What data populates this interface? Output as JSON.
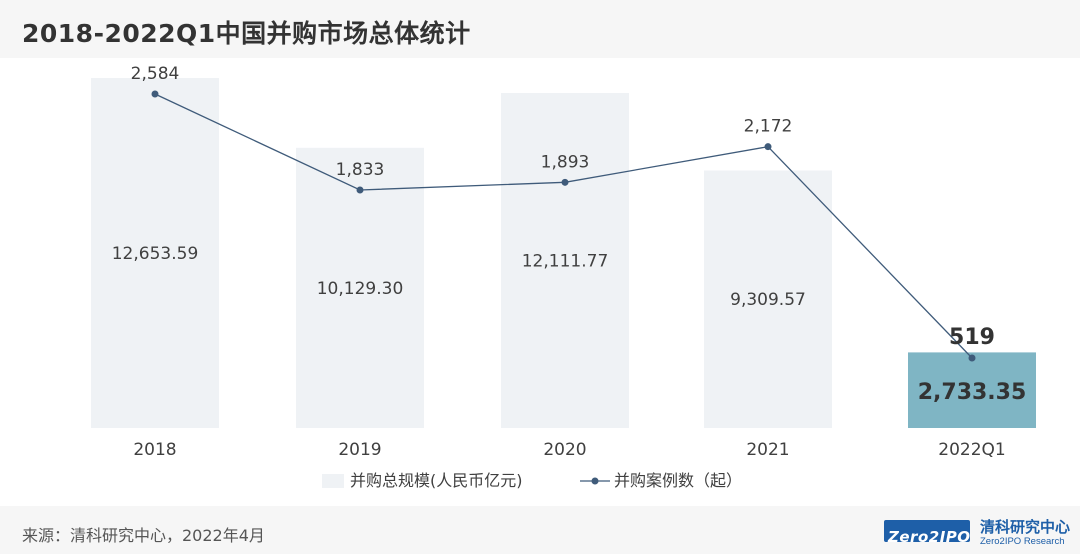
{
  "title": "2018-2022Q1中国并购市场总体统计",
  "source": "来源：清科研究中心，2022年4月",
  "logo": {
    "mark": "Zero2IPO",
    "name_cn": "清科研究中心",
    "name_en": "Zero2IPO Research"
  },
  "colors": {
    "bar": "#eff2f5",
    "bar_highlight": "#7fb5c4",
    "line": "#3f5b7a",
    "text": "#404040",
    "highlight_text": "#333333"
  },
  "chart_data": {
    "type": "bar",
    "categories": [
      "2018",
      "2019",
      "2020",
      "2021",
      "2022Q1"
    ],
    "series": [
      {
        "name": "并购总规模(人民币亿元)",
        "type": "bar",
        "values": [
          12653.59,
          10129.3,
          12111.77,
          9309.57,
          2733.35
        ],
        "labels": [
          "12,653.59",
          "10,129.30",
          "12,111.77",
          "9,309.57",
          "2,733.35"
        ]
      },
      {
        "name": "并购案例数（起）",
        "type": "line",
        "values": [
          2584,
          1833,
          1893,
          2172,
          519
        ],
        "labels": [
          "2,584",
          "1,833",
          "1,893",
          "2,172",
          "519"
        ]
      }
    ],
    "highlight_index": 4,
    "legend_position": "bottom",
    "grid": false
  }
}
